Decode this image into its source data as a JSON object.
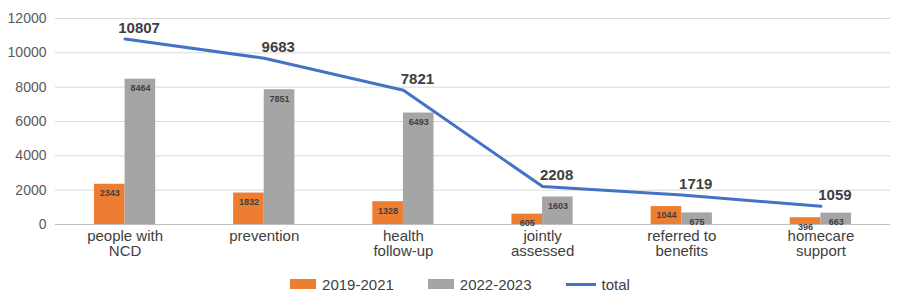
{
  "chart_data": {
    "type": "bar",
    "categories": [
      "people with NCD",
      "prevention",
      "health follow-up",
      "jointly assessed",
      "referred to benefits",
      "homecare support"
    ],
    "series": [
      {
        "name": "2019-2021",
        "color": "#ED7D31",
        "values": [
          2343,
          1832,
          1328,
          605,
          1044,
          396
        ]
      },
      {
        "name": "2022-2023",
        "color": "#A5A5A5",
        "values": [
          8464,
          7851,
          6493,
          1603,
          675,
          663
        ]
      },
      {
        "name": "total",
        "type": "line",
        "color": "#4472C4",
        "values": [
          10807,
          9683,
          7821,
          2208,
          1719,
          1059
        ]
      }
    ],
    "ylim": [
      0,
      12000
    ],
    "yticks": [
      0,
      2000,
      4000,
      6000,
      8000,
      10000,
      12000
    ],
    "grid": true,
    "legend": "bottom",
    "data_labels": true
  }
}
